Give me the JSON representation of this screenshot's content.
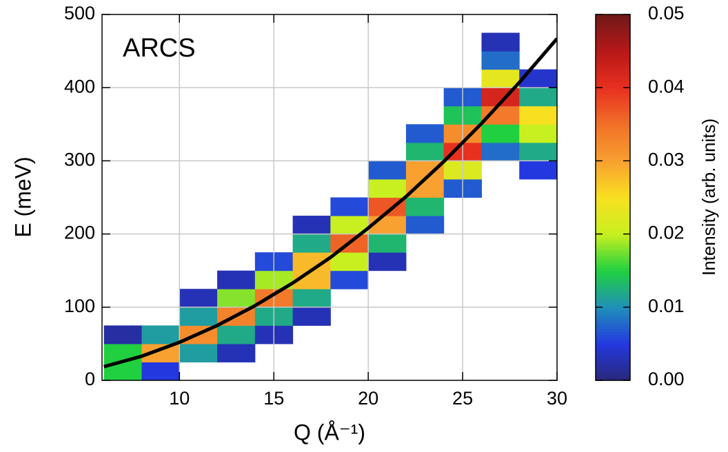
{
  "chart_data": {
    "type": "heatmap",
    "annotation": "ARCS",
    "xlabel": "Q (Å⁻¹)",
    "ylabel": "E (meV)",
    "xlim": [
      5.9,
      30
    ],
    "ylim": [
      0,
      500
    ],
    "xticks": [
      10,
      15,
      20,
      25,
      30
    ],
    "yticks": [
      0,
      100,
      200,
      300,
      400,
      500
    ],
    "grid": true,
    "x_bins": [
      6,
      8,
      10,
      12,
      14,
      16,
      18,
      20,
      22,
      24,
      26,
      28,
      30
    ],
    "y_bins": [
      0,
      25,
      50,
      75,
      100,
      125,
      150,
      175,
      200,
      225,
      250,
      275,
      300,
      325,
      350,
      375,
      400,
      425,
      450,
      475,
      500
    ],
    "z": [
      [
        0.015,
        0.015,
        0.002,
        null,
        null,
        null,
        null,
        null,
        null,
        null,
        null,
        null,
        null,
        null,
        null,
        null,
        null,
        null,
        null,
        null
      ],
      [
        0.005,
        0.03,
        0.011,
        null,
        null,
        null,
        null,
        null,
        null,
        null,
        null,
        null,
        null,
        null,
        null,
        null,
        null,
        null,
        null,
        null
      ],
      [
        null,
        0.011,
        0.032,
        0.011,
        0.003,
        null,
        null,
        null,
        null,
        null,
        null,
        null,
        null,
        null,
        null,
        null,
        null,
        null,
        null,
        null
      ],
      [
        null,
        0.003,
        0.012,
        0.033,
        0.018,
        0.003,
        null,
        null,
        null,
        null,
        null,
        null,
        null,
        null,
        null,
        null,
        null,
        null,
        null,
        null
      ],
      [
        null,
        null,
        0.003,
        0.012,
        0.034,
        0.019,
        0.006,
        null,
        null,
        null,
        null,
        null,
        null,
        null,
        null,
        null,
        null,
        null,
        null,
        null
      ],
      [
        null,
        null,
        null,
        0.003,
        0.012,
        0.028,
        0.028,
        0.012,
        0.003,
        null,
        null,
        null,
        null,
        null,
        null,
        null,
        null,
        null,
        null,
        null
      ],
      [
        null,
        null,
        null,
        null,
        null,
        0.006,
        0.02,
        0.036,
        0.02,
        0.006,
        null,
        null,
        null,
        null,
        null,
        null,
        null,
        null,
        null,
        null
      ],
      [
        null,
        null,
        null,
        null,
        null,
        null,
        0.003,
        0.013,
        0.03,
        0.037,
        0.02,
        0.007,
        null,
        null,
        null,
        null,
        null,
        null,
        null,
        null
      ],
      [
        null,
        null,
        null,
        null,
        null,
        null,
        null,
        null,
        0.007,
        0.013,
        0.03,
        0.03,
        0.013,
        0.007,
        null,
        null,
        null,
        null,
        null,
        null
      ],
      [
        null,
        null,
        null,
        null,
        null,
        null,
        null,
        null,
        null,
        null,
        0.007,
        0.022,
        0.04,
        0.032,
        0.014,
        0.007,
        null,
        null,
        null,
        null
      ],
      [
        null,
        null,
        null,
        null,
        null,
        null,
        null,
        null,
        null,
        null,
        null,
        null,
        0.008,
        0.015,
        0.034,
        0.042,
        0.023,
        0.008,
        0.003,
        null
      ],
      [
        null,
        null,
        null,
        null,
        null,
        null,
        null,
        null,
        null,
        null,
        null,
        0.005,
        0.012,
        0.02,
        0.025,
        0.012,
        0.004,
        null,
        null,
        null
      ]
    ],
    "colormap": [
      "#282878",
      "#2438e0",
      "#2090b8",
      "#20d040",
      "#c8f020",
      "#f8e020",
      "#f8a030",
      "#f07028",
      "#e83020",
      "#b81818",
      "#701818"
    ],
    "clim": [
      0,
      0.05
    ],
    "cticks": [
      {
        "value": 0,
        "label": "0.00"
      },
      0.01,
      0.02,
      0.03,
      0.04,
      0.05
    ],
    "colorbar_label": "Intensity (arb. units)",
    "line": {
      "color": "#000000",
      "x": [
        6,
        8,
        10,
        12,
        14,
        16,
        18,
        20,
        22,
        24,
        26,
        28,
        30
      ],
      "y": [
        18.7,
        33,
        52,
        75,
        102,
        133,
        168,
        208,
        251,
        299,
        351,
        407,
        467
      ]
    }
  }
}
